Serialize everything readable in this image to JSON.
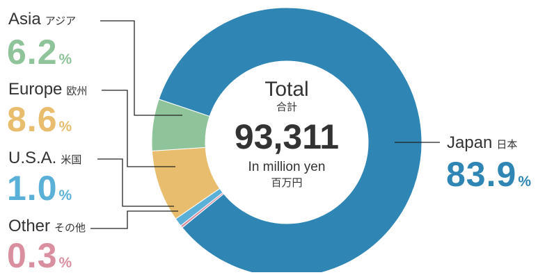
{
  "chart_data": {
    "type": "pie",
    "style": "donut",
    "center": {
      "title_en": "Total",
      "title_jp": "合計",
      "value": "93,311",
      "unit_en": "In million yen",
      "unit_jp": "百万円"
    },
    "slices": [
      {
        "label_en": "Japan",
        "label_jp": "日本",
        "value": 83.9,
        "display": "83.9",
        "unit": "%",
        "color": "#2f86b4"
      },
      {
        "label_en": "Other",
        "label_jp": "その他",
        "value": 0.3,
        "display": "0.3",
        "unit": "%",
        "color": "#d98f9f"
      },
      {
        "label_en": "U.S.A.",
        "label_jp": "米国",
        "value": 1.0,
        "display": "1.0",
        "unit": "%",
        "color": "#5ab0d6"
      },
      {
        "label_en": "Europe",
        "label_jp": "欧州",
        "value": 8.6,
        "display": "8.6",
        "unit": "%",
        "color": "#e8bd6e"
      },
      {
        "label_en": "Asia",
        "label_jp": "アジア",
        "value": 6.2,
        "display": "6.2",
        "unit": "%",
        "color": "#8fc49a"
      }
    ]
  }
}
